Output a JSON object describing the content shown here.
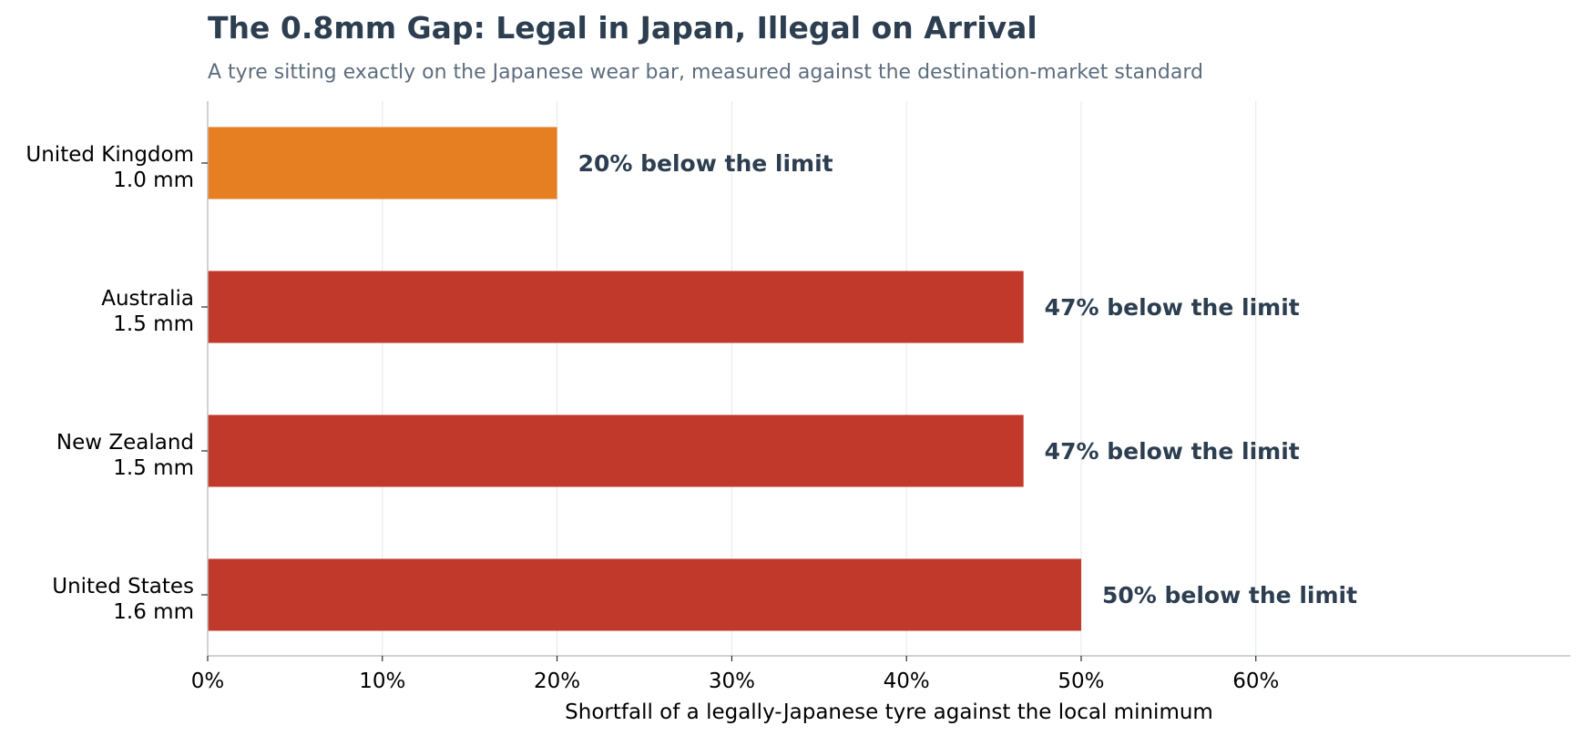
{
  "chart_data": {
    "type": "bar",
    "orientation": "horizontal",
    "title": "The 0.8mm Gap: Legal in Japan, Illegal on Arrival",
    "subtitle": "A tyre sitting exactly on the Japanese wear bar, measured against the destination-market standard",
    "xlabel": "Shortfall of a legally-Japanese tyre against the local minimum",
    "ylabel": "",
    "xlim": [
      0,
      78
    ],
    "xticks": [
      0,
      10,
      20,
      30,
      40,
      50,
      60
    ],
    "xtick_labels": [
      "0%",
      "10%",
      "20%",
      "30%",
      "40%",
      "50%",
      "60%"
    ],
    "grid": "vertical",
    "categories": [
      {
        "line1": "United Kingdom",
        "line2": "1.0 mm"
      },
      {
        "line1": "Australia",
        "line2": "1.5 mm"
      },
      {
        "line1": "New Zealand",
        "line2": "1.5 mm"
      },
      {
        "line1": "United States",
        "line2": "1.6 mm"
      }
    ],
    "values": [
      20,
      46.7,
      46.7,
      50
    ],
    "data_labels": [
      "20% below the limit",
      "47% below the limit",
      "47% below the limit",
      "50% below the limit"
    ],
    "colors": [
      "#e67e22",
      "#c0392b",
      "#c0392b",
      "#c0392b"
    ]
  }
}
